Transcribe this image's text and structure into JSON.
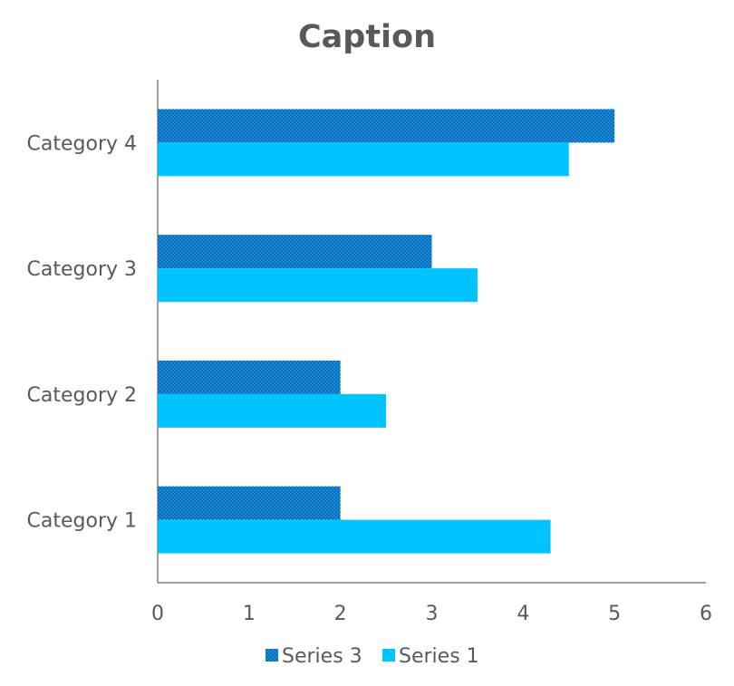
{
  "chart_data": {
    "type": "bar",
    "orientation": "horizontal",
    "title": "Caption",
    "categories": [
      "Category 1",
      "Category 2",
      "Category 3",
      "Category 4"
    ],
    "series": [
      {
        "name": "Series 3",
        "values": [
          2,
          2,
          3,
          5
        ],
        "color": "#0070C0",
        "pattern": "dotted"
      },
      {
        "name": "Series 1",
        "values": [
          4.3,
          2.5,
          3.5,
          4.5
        ],
        "color": "#00C4FF",
        "pattern": "solid"
      }
    ],
    "xlim": [
      0,
      6
    ],
    "x_ticks": [
      "0",
      "1",
      "2",
      "3",
      "4",
      "5",
      "6"
    ],
    "grid": false,
    "legend_position": "bottom"
  }
}
